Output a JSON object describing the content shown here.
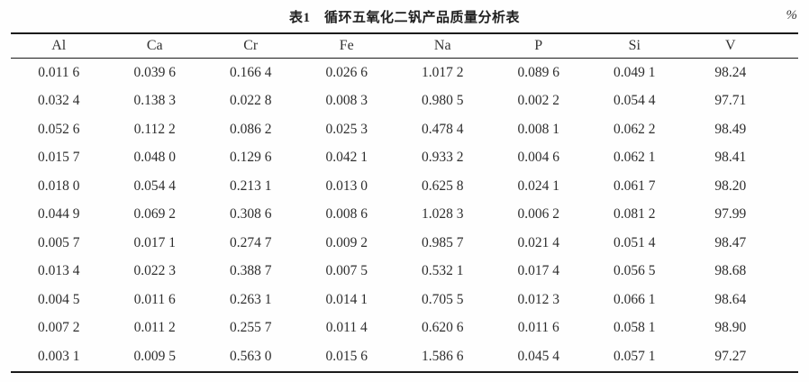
{
  "chart_data": {
    "type": "table",
    "title": "表1　循环五氧化二钒产品质量分析表",
    "unit": "%",
    "columns": [
      "Al",
      "Ca",
      "Cr",
      "Fe",
      "Na",
      "P",
      "Si",
      "V"
    ],
    "rows": [
      [
        "0.011 6",
        "0.039 6",
        "0.166 4",
        "0.026 6",
        "1.017 2",
        "0.089 6",
        "0.049 1",
        "98.24"
      ],
      [
        "0.032 4",
        "0.138 3",
        "0.022 8",
        "0.008 3",
        "0.980 5",
        "0.002 2",
        "0.054 4",
        "97.71"
      ],
      [
        "0.052 6",
        "0.112 2",
        "0.086 2",
        "0.025 3",
        "0.478 4",
        "0.008 1",
        "0.062 2",
        "98.49"
      ],
      [
        "0.015 7",
        "0.048 0",
        "0.129 6",
        "0.042 1",
        "0.933 2",
        "0.004 6",
        "0.062 1",
        "98.41"
      ],
      [
        "0.018 0",
        "0.054 4",
        "0.213 1",
        "0.013 0",
        "0.625 8",
        "0.024 1",
        "0.061 7",
        "98.20"
      ],
      [
        "0.044 9",
        "0.069 2",
        "0.308 6",
        "0.008 6",
        "1.028 3",
        "0.006 2",
        "0.081 2",
        "97.99"
      ],
      [
        "0.005 7",
        "0.017 1",
        "0.274 7",
        "0.009 2",
        "0.985 7",
        "0.021 4",
        "0.051 4",
        "98.47"
      ],
      [
        "0.013 4",
        "0.022 3",
        "0.388 7",
        "0.007 5",
        "0.532 1",
        "0.017 4",
        "0.056 5",
        "98.68"
      ],
      [
        "0.004 5",
        "0.011 6",
        "0.263 1",
        "0.014 1",
        "0.705 5",
        "0.012 3",
        "0.066 1",
        "98.64"
      ],
      [
        "0.007 2",
        "0.011 2",
        "0.255 7",
        "0.011 4",
        "0.620 6",
        "0.011 6",
        "0.058 1",
        "98.90"
      ],
      [
        "0.003 1",
        "0.009 5",
        "0.563 0",
        "0.015 6",
        "1.586 6",
        "0.045 4",
        "0.057 1",
        "97.27"
      ]
    ]
  },
  "colors": {
    "text": "#2d2d2d",
    "rule": "#1b1b1b",
    "background": "#fefefe"
  }
}
